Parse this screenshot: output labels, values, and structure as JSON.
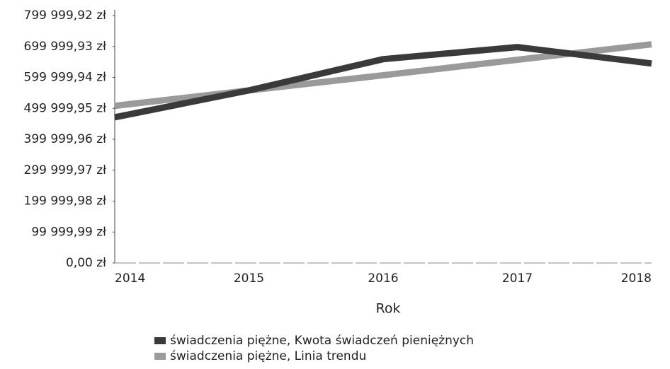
{
  "chart_data": {
    "type": "line",
    "x_label": "Rok",
    "categories": [
      "2014",
      "2015",
      "2016",
      "2017",
      "2018"
    ],
    "series": [
      {
        "name": "świadczenia piężne, Kwota świadczeń pieniężnych",
        "color": "#3a3a3a",
        "values": [
          471000,
          558000,
          659000,
          698000,
          645000
        ]
      },
      {
        "name": "świadczenia piężne, Linia trendu",
        "color": "#9a9a9a",
        "values": [
          508000,
          558000,
          607000,
          657000,
          707000
        ]
      }
    ],
    "ylim": [
      0,
      799999.92
    ],
    "yticks": [
      {
        "value": 0,
        "label": "0,00 zł"
      },
      {
        "value": 99999.99,
        "label": "99 999,99 zł"
      },
      {
        "value": 199999.98,
        "label": "199 999,98 zł"
      },
      {
        "value": 299999.97,
        "label": "299 999,97 zł"
      },
      {
        "value": 399999.96,
        "label": "399 999,96 zł"
      },
      {
        "value": 499999.95,
        "label": "499 999,95 zł"
      },
      {
        "value": 599999.94,
        "label": "599 999,94 zł"
      },
      {
        "value": 699999.93,
        "label": "699 999,93 zł"
      },
      {
        "value": 799999.92,
        "label": "799 999,92 zł"
      }
    ],
    "grid": false,
    "legend": "bottom"
  }
}
